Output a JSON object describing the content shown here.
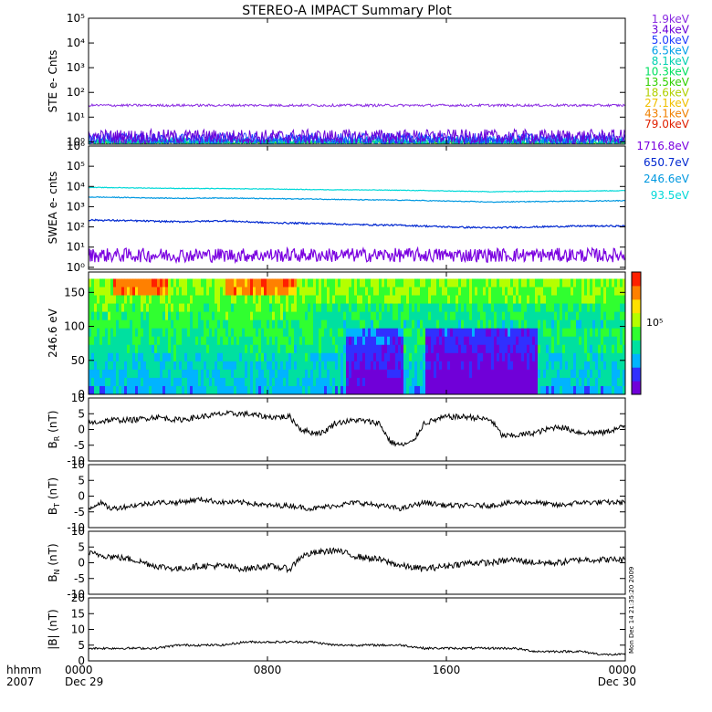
{
  "title": "STEREO-A IMPACT Summary Plot",
  "timestamp": "Mon Dec 14 21:35:20 2009",
  "time_axis": {
    "row1_label": "hhmm",
    "row2_label": "2007",
    "ticks": [
      {
        "t": 0,
        "label": "0000",
        "date": "Dec 29"
      },
      {
        "t": 8,
        "label": "0800",
        "date": ""
      },
      {
        "t": 16,
        "label": "1600",
        "date": ""
      },
      {
        "t": 24,
        "label": "0000",
        "date": "Dec 30"
      }
    ],
    "range_hours": [
      0,
      24
    ]
  },
  "colorbar": {
    "label": "10⁵",
    "colors": [
      "#7000d8",
      "#3030ff",
      "#00b4ff",
      "#00e0a0",
      "#30ff30",
      "#b4ff00",
      "#ffe000",
      "#ff8000",
      "#ff2000"
    ]
  },
  "chart_data": [
    {
      "panel": "ste",
      "type": "line",
      "ylabel": "STE e- Cnts",
      "yscale": "log",
      "ylim": [
        0.8,
        100000
      ],
      "yticks": [
        {
          "v": 1,
          "label": "10⁰"
        },
        {
          "v": 10,
          "label": "10¹"
        },
        {
          "v": 100,
          "label": "10²"
        },
        {
          "v": 1000,
          "label": "10³"
        },
        {
          "v": 10000,
          "label": "10⁴"
        },
        {
          "v": 100000,
          "label": "10⁵"
        }
      ],
      "series": [
        {
          "name": "1.9keV",
          "color": "#8a2be2",
          "level": 30,
          "noise": 0.05
        },
        {
          "name": "3.4keV",
          "color": "#6a00d8",
          "level": 1.6,
          "noise": 0.3
        },
        {
          "name": "5.0keV",
          "color": "#1e3cff",
          "level": 1.3,
          "noise": 0.25
        },
        {
          "name": "6.5keV",
          "color": "#00a0e8",
          "level": 1.1,
          "noise": 0.2
        },
        {
          "name": "8.1keV",
          "color": "#00d0b0",
          "level": 1.0,
          "noise": 0.15
        },
        {
          "name": "10.3keV",
          "color": "#00e060",
          "level": 0.95,
          "noise": 0.1
        },
        {
          "name": "13.5keV",
          "color": "#30d000",
          "level": 0.9,
          "noise": 0.05
        }
      ],
      "legend_extra": [
        {
          "name": "18.6keV",
          "color": "#b0d000"
        },
        {
          "name": "27.1keV",
          "color": "#f0c000"
        },
        {
          "name": "43.1keV",
          "color": "#f08000"
        },
        {
          "name": "79.0keV",
          "color": "#e02000"
        }
      ]
    },
    {
      "panel": "swea",
      "type": "line",
      "ylabel": "SWEA e- cnts",
      "yscale": "log",
      "ylim": [
        0.8,
        1000000
      ],
      "yticks": [
        {
          "v": 1,
          "label": "10⁰"
        },
        {
          "v": 10,
          "label": "10¹"
        },
        {
          "v": 100,
          "label": "10²"
        },
        {
          "v": 1000,
          "label": "10³"
        },
        {
          "v": 10000,
          "label": "10⁴"
        },
        {
          "v": 100000,
          "label": "10⁵"
        },
        {
          "v": 1000000,
          "label": "10⁶"
        }
      ],
      "series": [
        {
          "name": "1716.8eV",
          "color": "#7a00e0",
          "x": [
            0,
            24
          ],
          "y": [
            4,
            4
          ],
          "noise": 0.35
        },
        {
          "name": "650.7eV",
          "color": "#0028d0",
          "x": [
            0,
            2,
            4,
            6,
            8,
            10,
            12,
            14,
            16,
            18,
            20,
            22,
            24
          ],
          "y": [
            220,
            200,
            180,
            200,
            160,
            150,
            130,
            120,
            100,
            90,
            100,
            110,
            110
          ],
          "noise": 0.04
        },
        {
          "name": "246.6eV",
          "color": "#0098e0",
          "x": [
            0,
            2,
            4,
            6,
            8,
            10,
            12,
            14,
            16,
            18,
            20,
            22,
            24
          ],
          "y": [
            3000,
            2800,
            2600,
            2700,
            2500,
            2400,
            2200,
            2100,
            1900,
            1700,
            1800,
            1900,
            2000
          ],
          "noise": 0.02
        },
        {
          "name": "93.5eV",
          "color": "#00d8d8",
          "x": [
            0,
            2,
            4,
            6,
            8,
            10,
            12,
            14,
            16,
            18,
            20,
            22,
            24
          ],
          "y": [
            9000,
            8500,
            8000,
            7800,
            7500,
            7000,
            6800,
            6500,
            6000,
            5500,
            5800,
            6000,
            6200
          ],
          "noise": 0.015
        }
      ]
    },
    {
      "panel": "pad",
      "type": "heatmap",
      "ylabel": "246.6 eV",
      "ylim": [
        0,
        180
      ],
      "yticks": [
        {
          "v": 0,
          "label": "0"
        },
        {
          "v": 50,
          "label": "50"
        },
        {
          "v": 100,
          "label": "100"
        },
        {
          "v": 150,
          "label": "150"
        }
      ],
      "zlabel": "10⁵"
    },
    {
      "panel": "br",
      "type": "line",
      "ylabel": "B",
      "ylabel_sub": "R",
      "ylabel_unit": "(nT)",
      "ylim": [
        -10,
        10
      ],
      "yticks": [
        {
          "v": -10,
          "label": "-10"
        },
        {
          "v": -5,
          "label": "-5"
        },
        {
          "v": 0,
          "label": "0"
        },
        {
          "v": 5,
          "label": "5"
        },
        {
          "v": 10,
          "label": "10"
        }
      ],
      "x": [
        0,
        1,
        2,
        3,
        4,
        5,
        6,
        7,
        8,
        9,
        9.5,
        10,
        10.5,
        11,
        12,
        13,
        13.5,
        14,
        14.5,
        15,
        16,
        17,
        18,
        18.5,
        19,
        20,
        21,
        22,
        23,
        24
      ],
      "y": [
        2,
        3,
        3,
        4,
        3,
        4,
        5,
        5,
        4,
        4,
        0,
        -1,
        -1,
        2,
        3,
        2,
        -4,
        -5,
        -4,
        2,
        4,
        4,
        3,
        -2,
        -2,
        -1,
        1,
        -1,
        -1,
        1
      ],
      "noise": 0.9
    },
    {
      "panel": "bt",
      "type": "line",
      "ylabel": "B",
      "ylabel_sub": "T",
      "ylabel_unit": "(nT)",
      "ylim": [
        -10,
        10
      ],
      "yticks": [
        {
          "v": -10,
          "label": "-10"
        },
        {
          "v": -5,
          "label": "-5"
        },
        {
          "v": 0,
          "label": "0"
        },
        {
          "v": 5,
          "label": "5"
        },
        {
          "v": 10,
          "label": "10"
        }
      ],
      "x": [
        0,
        0.5,
        1,
        2,
        3,
        4,
        5,
        6,
        7,
        8,
        9,
        10,
        11,
        12,
        13,
        14,
        15,
        16,
        17,
        18,
        19,
        20,
        21,
        22,
        23,
        24
      ],
      "y": [
        -4,
        -2,
        -4,
        -3,
        -2,
        -2,
        -1,
        -2,
        -2,
        -3,
        -3,
        -4,
        -3,
        -2,
        -3,
        -4,
        -2,
        -3,
        -3,
        -3,
        -2,
        -2,
        -3,
        -2,
        -2,
        -2
      ],
      "noise": 0.8
    },
    {
      "panel": "bn",
      "type": "line",
      "ylabel": "B",
      "ylabel_sub": "N",
      "ylabel_unit": "(nT)",
      "ylim": [
        -10,
        10
      ],
      "yticks": [
        {
          "v": -10,
          "label": "-10"
        },
        {
          "v": -5,
          "label": "-5"
        },
        {
          "v": 0,
          "label": "0"
        },
        {
          "v": 5,
          "label": "5"
        },
        {
          "v": 10,
          "label": "10"
        }
      ],
      "x": [
        0,
        1,
        2,
        3,
        4,
        5,
        6,
        7,
        8,
        9,
        9.5,
        10,
        11,
        12,
        13,
        14,
        15,
        16,
        17,
        18,
        19,
        20,
        21,
        22,
        23,
        24
      ],
      "y": [
        3,
        2,
        1,
        -1,
        -2,
        -1,
        -1,
        -2,
        -1,
        -2,
        2,
        3,
        4,
        2,
        1,
        -1,
        -2,
        -1,
        0,
        0,
        1,
        0,
        0,
        1,
        1,
        1
      ],
      "noise": 1.0
    },
    {
      "panel": "bmag",
      "type": "line",
      "ylabel": "|B| (nT)",
      "ylim": [
        0,
        20
      ],
      "yticks": [
        {
          "v": 0,
          "label": "0"
        },
        {
          "v": 5,
          "label": "5"
        },
        {
          "v": 10,
          "label": "10"
        },
        {
          "v": 15,
          "label": "15"
        },
        {
          "v": 20,
          "label": "20"
        }
      ],
      "x": [
        0,
        1,
        2,
        3,
        4,
        5,
        6,
        7,
        8,
        9,
        10,
        11,
        12,
        13,
        14,
        15,
        16,
        17,
        18,
        19,
        20,
        21,
        22,
        23,
        24
      ],
      "y": [
        4,
        4,
        4,
        4,
        5,
        5,
        5,
        6,
        6,
        6,
        6,
        5,
        5,
        5,
        5,
        4,
        4,
        4,
        4,
        4,
        3,
        3,
        3,
        2,
        2
      ],
      "noise": 0.35
    }
  ]
}
